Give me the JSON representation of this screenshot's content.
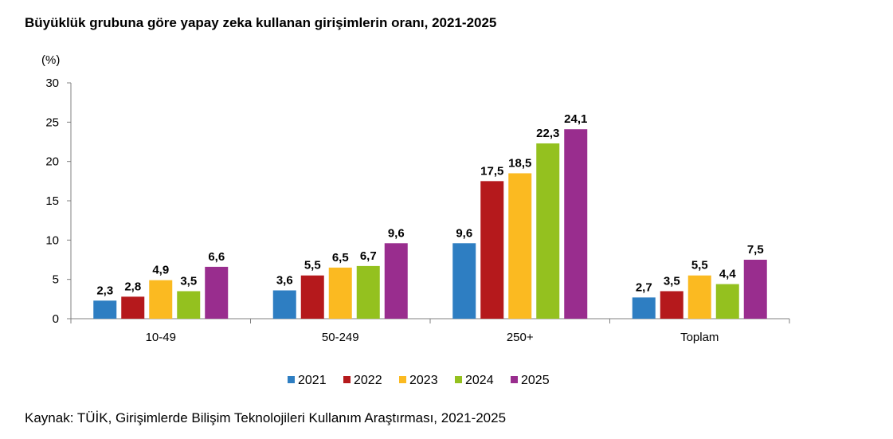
{
  "title": "Büyüklük grubuna göre yapay zeka kullanan girişimlerin oranı, 2021-2025",
  "source": "Kaynak: TÜİK, Girişimlerde Bilişim Teknolojileri Kullanım Araştırması, 2021-2025",
  "chart_data": {
    "type": "bar",
    "unit_label": "(%)",
    "categories": [
      "10-49",
      "50-249",
      "250+",
      "Toplam"
    ],
    "ylim": [
      0,
      30
    ],
    "yticks": [
      0,
      5,
      10,
      15,
      20,
      25,
      30
    ],
    "grid": false,
    "legend_position": "bottom",
    "series": [
      {
        "name": "2021",
        "color": "#2E7EC2",
        "values": [
          2.3,
          3.6,
          9.6,
          2.7
        ],
        "labels": [
          "2,3",
          "3,6",
          "9,6",
          "2,7"
        ]
      },
      {
        "name": "2022",
        "color": "#B5191C",
        "values": [
          2.8,
          5.5,
          17.5,
          3.5
        ],
        "labels": [
          "2,8",
          "5,5",
          "17,5",
          "3,5"
        ]
      },
      {
        "name": "2023",
        "color": "#FBBA21",
        "values": [
          4.9,
          6.5,
          18.5,
          5.5
        ],
        "labels": [
          "4,9",
          "6,5",
          "18,5",
          "5,5"
        ]
      },
      {
        "name": "2024",
        "color": "#94C11F",
        "values": [
          3.5,
          6.7,
          22.3,
          4.4
        ],
        "labels": [
          "3,5",
          "6,7",
          "22,3",
          "4,4"
        ]
      },
      {
        "name": "2025",
        "color": "#992D8E",
        "values": [
          6.6,
          9.6,
          24.1,
          7.5
        ],
        "labels": [
          "6,6",
          "9,6",
          "24,1",
          "7,5"
        ]
      }
    ]
  }
}
